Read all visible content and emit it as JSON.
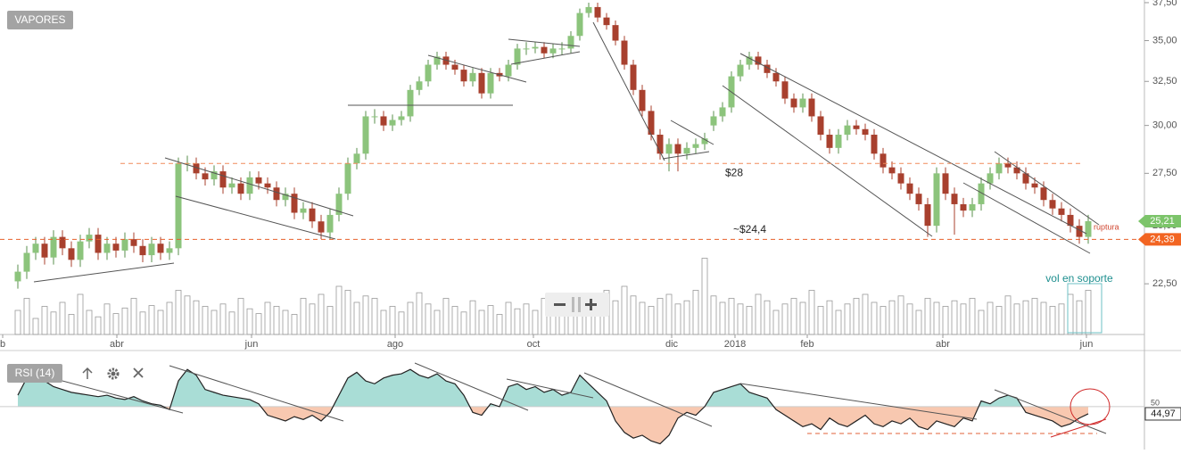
{
  "chart_data": [
    {
      "type": "candlestick",
      "title": "VAPORES",
      "log_scale": true,
      "up_color": "#8cc47c",
      "down_color": "#a8402e",
      "volume_color": "#9a9a9a",
      "xlim": [
        -2,
        126
      ],
      "xticks": [
        {
          "value": -1.7,
          "label": "b"
        },
        {
          "value": 11.1,
          "label": "abr"
        },
        {
          "value": 26.2,
          "label": "jun"
        },
        {
          "value": 42.3,
          "label": "ago"
        },
        {
          "value": 57.8,
          "label": "oct"
        },
        {
          "value": 73.3,
          "label": "dic"
        },
        {
          "value": 80.4,
          "label": "2018"
        },
        {
          "value": 88.5,
          "label": "feb"
        },
        {
          "value": 103.7,
          "label": "abr"
        },
        {
          "value": 119.8,
          "label": "jun"
        }
      ],
      "ylim": [
        20.52,
        37.68
      ],
      "yticks": [
        {
          "value": 22.5,
          "label": "22,50"
        },
        {
          "value": 25,
          "label": "25,00"
        },
        {
          "value": 27.5,
          "label": "27,50"
        },
        {
          "value": 30,
          "label": "30,00"
        },
        {
          "value": 32.5,
          "label": "32,50"
        },
        {
          "value": 35,
          "label": "35,00"
        },
        {
          "value": 37.5,
          "label": "37,50"
        }
      ],
      "open": [
        22.6,
        23.0,
        23.8,
        24.2,
        23.6,
        24.5,
        24.0,
        23.5,
        24.3,
        24.6,
        23.8,
        24.2,
        23.9,
        24.4,
        24.1,
        23.7,
        24.2,
        23.8,
        24.0,
        28.0,
        28.0,
        27.5,
        27.2,
        27.6,
        26.8,
        27.0,
        26.5,
        27.3,
        27.0,
        26.8,
        26.2,
        26.5,
        25.6,
        25.8,
        25.2,
        24.7,
        25.5,
        26.5,
        28.0,
        28.5,
        30.5,
        30.5,
        30.0,
        30.3,
        30.5,
        32.0,
        32.5,
        33.5,
        34.0,
        33.5,
        33.2,
        32.5,
        33.0,
        31.8,
        33.0,
        32.8,
        33.5,
        34.5,
        34.5,
        34.6,
        34.2,
        34.5,
        34.5,
        35.3,
        36.8,
        37.2,
        36.5,
        36.0,
        35.0,
        33.5,
        32.0,
        30.8,
        29.5,
        28.5,
        29.0,
        28.5,
        28.8,
        29.0,
        30.0,
        30.5,
        31.0,
        32.8,
        33.5,
        34.0,
        33.5,
        33.0,
        32.5,
        31.5,
        31.0,
        31.5,
        30.5,
        29.5,
        28.8,
        29.5,
        30.0,
        29.8,
        29.5,
        28.5,
        27.8,
        27.5,
        27.0,
        26.5,
        26.0,
        25.0,
        27.5,
        26.5,
        26.0,
        25.7,
        26.0,
        27.0,
        27.5,
        28.0,
        27.8,
        27.5,
        27.0,
        26.8,
        26.2,
        25.8,
        25.5,
        25.0,
        24.5
      ],
      "high": [
        23.3,
        24.1,
        24.5,
        24.5,
        24.8,
        24.8,
        24.3,
        24.6,
        24.9,
        24.9,
        24.5,
        24.5,
        24.7,
        24.7,
        24.4,
        24.5,
        24.5,
        24.3,
        28.3,
        28.4,
        28.3,
        27.8,
        27.9,
        27.9,
        27.3,
        27.3,
        27.6,
        27.6,
        27.3,
        27.1,
        26.8,
        26.8,
        26.1,
        26.1,
        25.5,
        25.8,
        26.8,
        28.3,
        28.8,
        30.8,
        30.9,
        30.8,
        30.6,
        30.8,
        32.3,
        32.8,
        33.8,
        34.3,
        34.3,
        33.8,
        33.5,
        33.3,
        33.3,
        33.3,
        33.3,
        33.8,
        34.8,
        34.9,
        34.9,
        34.9,
        34.8,
        34.9,
        35.6,
        37.1,
        37.5,
        37.5,
        36.8,
        36.3,
        35.3,
        33.8,
        32.3,
        31.1,
        29.8,
        29.3,
        29.3,
        29.1,
        29.3,
        29.6,
        30.8,
        31.3,
        33.1,
        33.8,
        34.3,
        34.3,
        33.8,
        33.3,
        32.8,
        31.8,
        31.8,
        31.8,
        30.8,
        29.8,
        29.8,
        30.3,
        30.3,
        30.1,
        29.8,
        28.8,
        28.1,
        27.8,
        27.3,
        26.8,
        26.3,
        27.8,
        27.8,
        26.8,
        26.3,
        26.3,
        27.3,
        27.8,
        28.3,
        28.3,
        28.1,
        27.8,
        27.3,
        27.1,
        26.5,
        26.1,
        25.8,
        25.3,
        25.5
      ],
      "low": [
        22.3,
        22.7,
        23.5,
        23.3,
        23.3,
        23.7,
        23.2,
        23.2,
        24.0,
        23.5,
        23.5,
        23.6,
        23.6,
        23.8,
        23.4,
        23.4,
        23.5,
        23.5,
        23.7,
        27.6,
        27.2,
        26.9,
        26.9,
        26.5,
        26.5,
        26.2,
        26.2,
        26.7,
        26.5,
        25.9,
        25.9,
        25.3,
        25.3,
        24.9,
        24.4,
        24.4,
        25.2,
        26.2,
        27.7,
        28.2,
        30.1,
        29.7,
        29.7,
        30.0,
        30.2,
        31.7,
        32.2,
        33.2,
        33.2,
        32.9,
        32.2,
        32.2,
        31.5,
        31.5,
        32.5,
        32.5,
        33.2,
        34.1,
        34.2,
        33.9,
        33.9,
        34.1,
        34.2,
        35.0,
        36.5,
        36.2,
        35.7,
        34.7,
        33.2,
        31.7,
        30.5,
        29.2,
        28.2,
        27.6,
        27.6,
        28.2,
        28.5,
        28.7,
        29.7,
        30.2,
        30.7,
        32.5,
        33.2,
        33.2,
        32.7,
        32.2,
        31.2,
        30.7,
        30.7,
        30.2,
        29.2,
        28.5,
        28.5,
        29.2,
        29.5,
        29.2,
        28.2,
        27.5,
        27.2,
        26.7,
        26.2,
        25.7,
        24.5,
        24.7,
        26.2,
        24.6,
        25.4,
        25.4,
        25.7,
        26.7,
        27.2,
        27.5,
        27.2,
        26.7,
        26.5,
        25.9,
        25.5,
        25.2,
        24.7,
        24.2,
        24.2
      ],
      "close": [
        23.0,
        23.8,
        24.2,
        23.6,
        24.5,
        24.0,
        23.5,
        24.3,
        24.6,
        23.8,
        24.2,
        23.9,
        24.4,
        24.1,
        23.7,
        24.2,
        23.8,
        24.0,
        28.0,
        28.0,
        27.5,
        27.2,
        27.6,
        26.8,
        27.0,
        26.5,
        27.3,
        27.0,
        26.8,
        26.2,
        26.5,
        25.6,
        25.8,
        25.2,
        24.7,
        25.5,
        26.5,
        28.0,
        28.5,
        30.5,
        30.5,
        30.0,
        30.3,
        30.5,
        32.0,
        32.5,
        33.5,
        34.0,
        33.5,
        33.2,
        32.5,
        33.0,
        31.8,
        33.0,
        32.8,
        33.5,
        34.5,
        34.5,
        34.6,
        34.2,
        34.5,
        34.5,
        35.3,
        36.8,
        37.2,
        36.5,
        36.0,
        35.0,
        33.5,
        32.0,
        30.8,
        29.5,
        28.5,
        29.0,
        28.5,
        28.8,
        29.0,
        29.3,
        30.5,
        31.0,
        32.8,
        33.5,
        34.0,
        33.5,
        33.0,
        32.5,
        31.5,
        31.0,
        31.5,
        30.5,
        29.5,
        28.8,
        29.5,
        30.0,
        29.8,
        29.5,
        28.5,
        27.8,
        27.5,
        27.0,
        26.5,
        26.0,
        25.0,
        27.5,
        26.5,
        26.0,
        25.7,
        26.0,
        27.0,
        27.5,
        28.0,
        27.8,
        27.5,
        27.0,
        26.8,
        26.2,
        25.8,
        25.5,
        25.0,
        24.5,
        25.21
      ],
      "volume": [
        30,
        45,
        20,
        35,
        28,
        40,
        25,
        50,
        30,
        22,
        38,
        26,
        33,
        45,
        28,
        36,
        30,
        40,
        55,
        48,
        42,
        35,
        30,
        38,
        28,
        45,
        32,
        26,
        40,
        35,
        30,
        25,
        45,
        38,
        50,
        35,
        60,
        55,
        40,
        48,
        45,
        30,
        35,
        28,
        40,
        52,
        38,
        30,
        45,
        35,
        28,
        42,
        30,
        36,
        25,
        40,
        32,
        38,
        30,
        45,
        28,
        35,
        40,
        50,
        45,
        38,
        55,
        42,
        60,
        48,
        40,
        35,
        45,
        50,
        38,
        42,
        55,
        95,
        48,
        40,
        45,
        38,
        35,
        50,
        42,
        30,
        38,
        45,
        40,
        55,
        35,
        42,
        30,
        38,
        45,
        50,
        40,
        35,
        42,
        48,
        38,
        30,
        45,
        40,
        35,
        42,
        38,
        45,
        30,
        40,
        35,
        48,
        38,
        42,
        45,
        40,
        35,
        38,
        50,
        42,
        55
      ],
      "reference_lines": [
        {
          "value": 28,
          "label": "$28"
        },
        {
          "value": 24.39,
          "label": "24,39"
        }
      ],
      "last_price": {
        "value": 25.21,
        "label": "25,21"
      },
      "annotations": [
        "~$24,4",
        "ruptura",
        "vol en soporte"
      ]
    },
    {
      "type": "line",
      "title": "RSI (14)",
      "color": "#222222",
      "above_color": "#a9ddd6",
      "below_color": "#f8c8b0",
      "ylim": [
        20,
        88
      ],
      "yticks": [
        50
      ],
      "values": [
        58,
        70,
        72,
        68,
        64,
        62,
        60,
        59,
        58,
        57,
        58,
        56,
        55,
        57,
        54,
        52,
        51,
        48,
        68,
        76,
        72,
        62,
        60,
        58,
        57,
        56,
        55,
        52,
        44,
        42,
        40,
        43,
        41,
        44,
        40,
        46,
        58,
        70,
        74,
        68,
        66,
        70,
        72,
        73,
        76,
        72,
        70,
        73,
        68,
        66,
        58,
        46,
        44,
        52,
        50,
        64,
        66,
        62,
        64,
        60,
        62,
        58,
        60,
        72,
        66,
        60,
        54,
        40,
        32,
        28,
        30,
        26,
        24,
        30,
        42,
        46,
        44,
        50,
        60,
        62,
        64,
        66,
        60,
        58,
        56,
        48,
        44,
        40,
        36,
        38,
        34,
        42,
        38,
        36,
        40,
        44,
        38,
        36,
        40,
        38,
        42,
        36,
        34,
        40,
        38,
        36,
        42,
        40,
        54,
        52,
        56,
        58,
        56,
        46,
        44,
        42,
        40,
        36,
        38,
        42,
        44.97
      ],
      "last_value": {
        "value": 44.97,
        "label": "44,97"
      }
    }
  ]
}
